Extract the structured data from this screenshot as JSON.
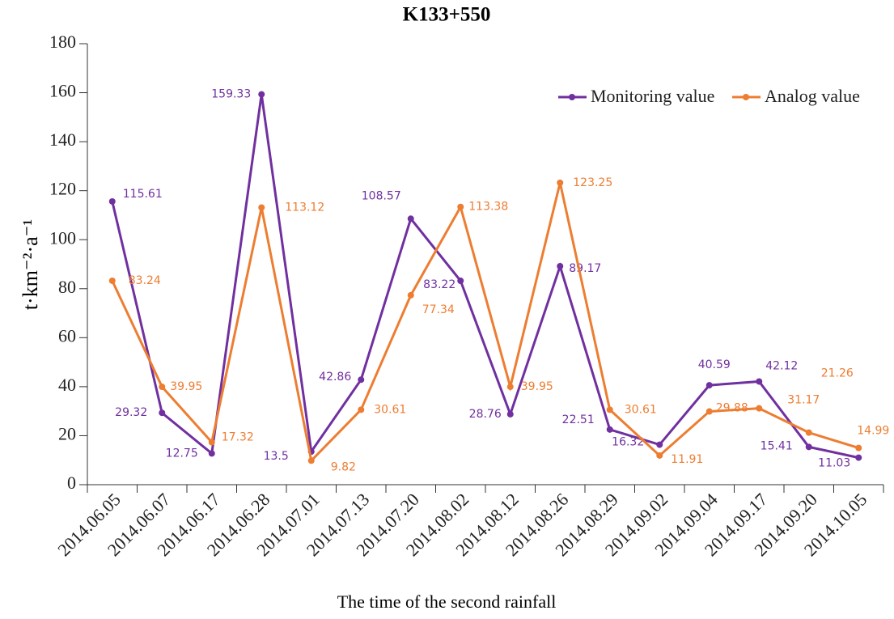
{
  "chart_data": {
    "type": "line",
    "title": "K133+550",
    "x_label": "The time of the second rainfall",
    "y_label": "t·km⁻²·a⁻¹",
    "categories": [
      "2014.06.05",
      "2014.06.07",
      "2014.06.17",
      "2014.06.28",
      "2014.07.01",
      "2014.07.13",
      "2014.07.20",
      "2014.08.02",
      "2014.08.12",
      "2014.08.26",
      "2014.08.29",
      "2014.09.02",
      "2014.09.04",
      "2014.09.17",
      "2014.09.20",
      "2014.10.05"
    ],
    "series": [
      {
        "name": "Monitoring value",
        "color": "#7030a0",
        "values": [
          115.61,
          29.32,
          12.75,
          159.33,
          13.5,
          42.86,
          108.57,
          83.22,
          28.76,
          89.17,
          22.51,
          16.32,
          40.59,
          42.12,
          15.41,
          11.03
        ]
      },
      {
        "name": "Analog value",
        "color": "#ed7d31",
        "values": [
          83.24,
          39.95,
          17.32,
          113.12,
          9.82,
          30.61,
          77.34,
          113.38,
          39.95,
          123.25,
          30.61,
          11.91,
          29.88,
          31.17,
          21.26,
          14.99
        ]
      }
    ],
    "ylim": [
      0,
      180
    ],
    "yticks": [
      0,
      20,
      40,
      60,
      80,
      100,
      120,
      140,
      160,
      180
    ],
    "legend": "upper right"
  }
}
